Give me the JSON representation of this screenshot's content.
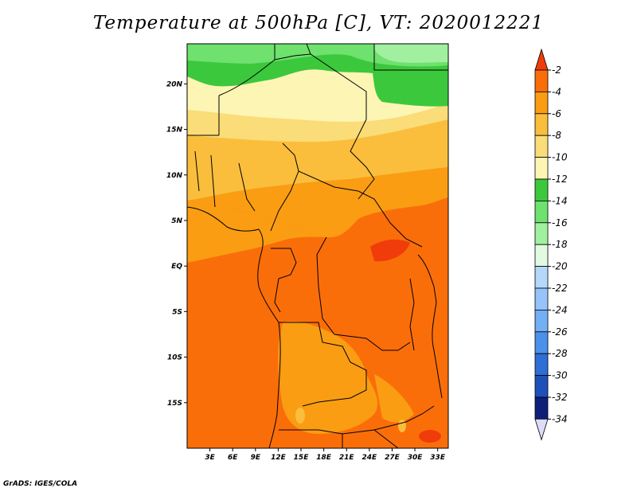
{
  "title": "Temperature at 500hPa [C], VT: 2020012221",
  "footer": "GrADS: IGES/COLA",
  "map": {
    "lat_labels": [
      "20N",
      "15N",
      "10N",
      "5N",
      "EQ",
      "5S",
      "10S",
      "15S"
    ],
    "lon_labels": [
      "3E",
      "6E",
      "9E",
      "12E",
      "15E",
      "18E",
      "21E",
      "24E",
      "27E",
      "30E",
      "33E"
    ],
    "lat_range": [
      -20,
      24.4
    ],
    "lon_range": [
      0,
      34.4
    ]
  },
  "colorbar": {
    "labels": [
      "-2",
      "-4",
      "-6",
      "-8",
      "-10",
      "-12",
      "-14",
      "-16",
      "-18",
      "-20",
      "-22",
      "-24",
      "-26",
      "-28",
      "-30",
      "-32",
      "-34"
    ],
    "colors": [
      "#f03c0a",
      "#fa6e0a",
      "#fa9d12",
      "#fabe3c",
      "#fadc78",
      "#fdf5b4",
      "#3cc83c",
      "#6ee16e",
      "#a0f0a0",
      "#e1fae1",
      "#b4d7fa",
      "#96c3fa",
      "#73aff5",
      "#4b91eb",
      "#2d6ed7",
      "#1e50b9",
      "#0f1e78"
    ],
    "low_color": "#dcdcfa"
  }
}
